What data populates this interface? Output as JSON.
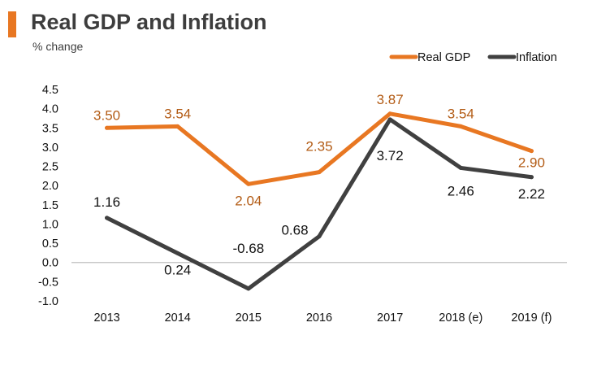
{
  "header": {
    "title": "Real GDP and Inflation",
    "subtitle": "% change",
    "accent_color": "#e87722"
  },
  "chart_data": {
    "type": "line",
    "title": "Real GDP and Inflation",
    "ylabel": "% change",
    "xlabel": "",
    "categories": [
      "2013",
      "2014",
      "2015",
      "2016",
      "2017",
      "2018 (e)",
      "2019 (f)"
    ],
    "ylim": [
      -1.0,
      4.5
    ],
    "yticks": [
      "4.5",
      "4.0",
      "3.5",
      "3.0",
      "2.5",
      "2.0",
      "1.5",
      "1.0",
      "0.5",
      "0.0",
      "-0.5",
      "-1.0"
    ],
    "legend_position": "top-right",
    "series": [
      {
        "name": "Real GDP",
        "color": "#e87722",
        "label_color": "#b35c16",
        "values": [
          3.5,
          3.54,
          2.04,
          2.35,
          3.87,
          3.54,
          2.9
        ],
        "labels": [
          "3.50",
          "3.54",
          "2.04",
          "2.35",
          "3.87",
          "3.54",
          "2.90"
        ]
      },
      {
        "name": "Inflation",
        "color": "#404040",
        "label_color": "#111111",
        "values": [
          1.16,
          0.24,
          -0.68,
          0.68,
          3.72,
          2.46,
          2.22
        ],
        "labels": [
          "1.16",
          "0.24",
          "-0.68",
          "0.68",
          "3.72",
          "2.46",
          "2.22"
        ]
      }
    ]
  }
}
